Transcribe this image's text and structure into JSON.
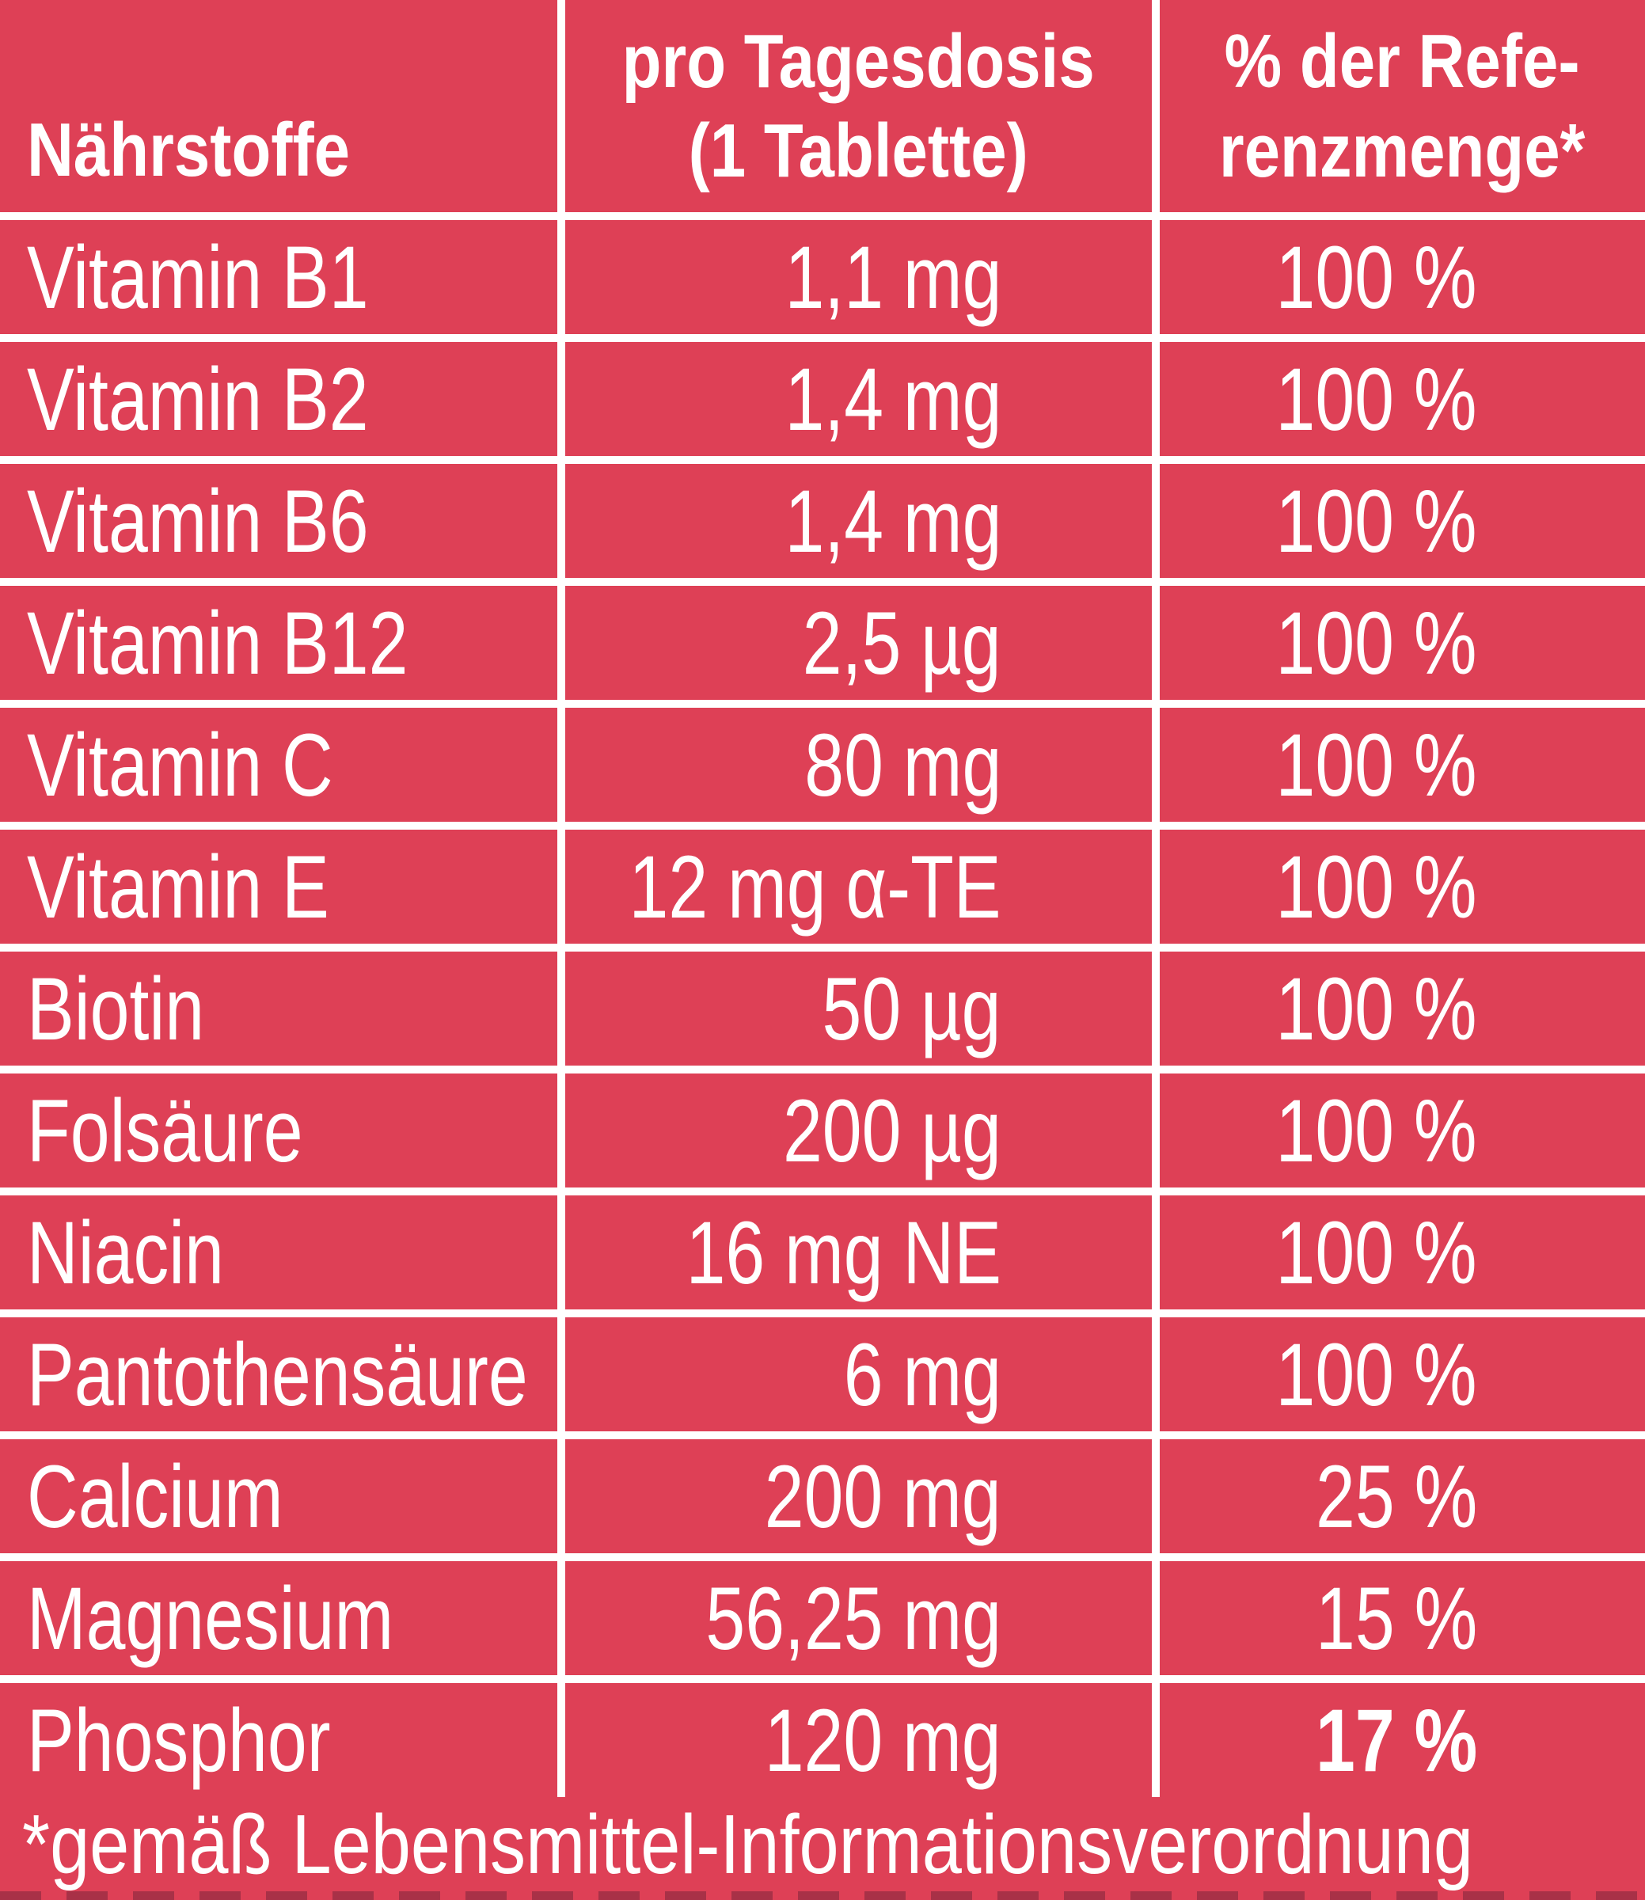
{
  "colors": {
    "background": "#de4056",
    "text": "#ffffff",
    "grid_lines": "#ffffff",
    "bottom_dashes": "#a83147"
  },
  "table": {
    "header": {
      "nutrients": "Nährstoffe",
      "dose_line1": "pro Tagesdosis",
      "dose_line2": "(1 Tablette)",
      "reference_line1": "% der Refe-",
      "reference_line2": "renzmenge*"
    },
    "rows": [
      {
        "name": "Vitamin B1",
        "amount": "1,1 mg",
        "percent": "100 %"
      },
      {
        "name": "Vitamin B2",
        "amount": "1,4 mg",
        "percent": "100 %"
      },
      {
        "name": "Vitamin B6",
        "amount": "1,4 mg",
        "percent": "100 %"
      },
      {
        "name": "Vitamin B12",
        "amount": "2,5 µg",
        "percent": "100 %"
      },
      {
        "name": "Vitamin C",
        "amount": "80 mg",
        "percent": "100 %"
      },
      {
        "name": "Vitamin E",
        "amount": "12 mg α-TE",
        "percent": "100 %"
      },
      {
        "name": "Biotin",
        "amount": "50 µg",
        "percent": "100 %"
      },
      {
        "name": "Folsäure",
        "amount": "200 µg",
        "percent": "100 %"
      },
      {
        "name": "Niacin",
        "amount": "16 mg NE",
        "percent": "100 %"
      },
      {
        "name": "Pantothensäure",
        "amount": "6 mg",
        "percent": "100 %"
      },
      {
        "name": "Calcium",
        "amount": "200 mg",
        "percent": "25 %"
      },
      {
        "name": "Magnesium",
        "amount": "56,25 mg",
        "percent": "15 %"
      },
      {
        "name": "Phosphor",
        "amount": "120 mg",
        "percent": "17 %",
        "bold_percent": true
      }
    ]
  },
  "footnote": "*gemäß Lebensmittel-Informationsverordnung"
}
